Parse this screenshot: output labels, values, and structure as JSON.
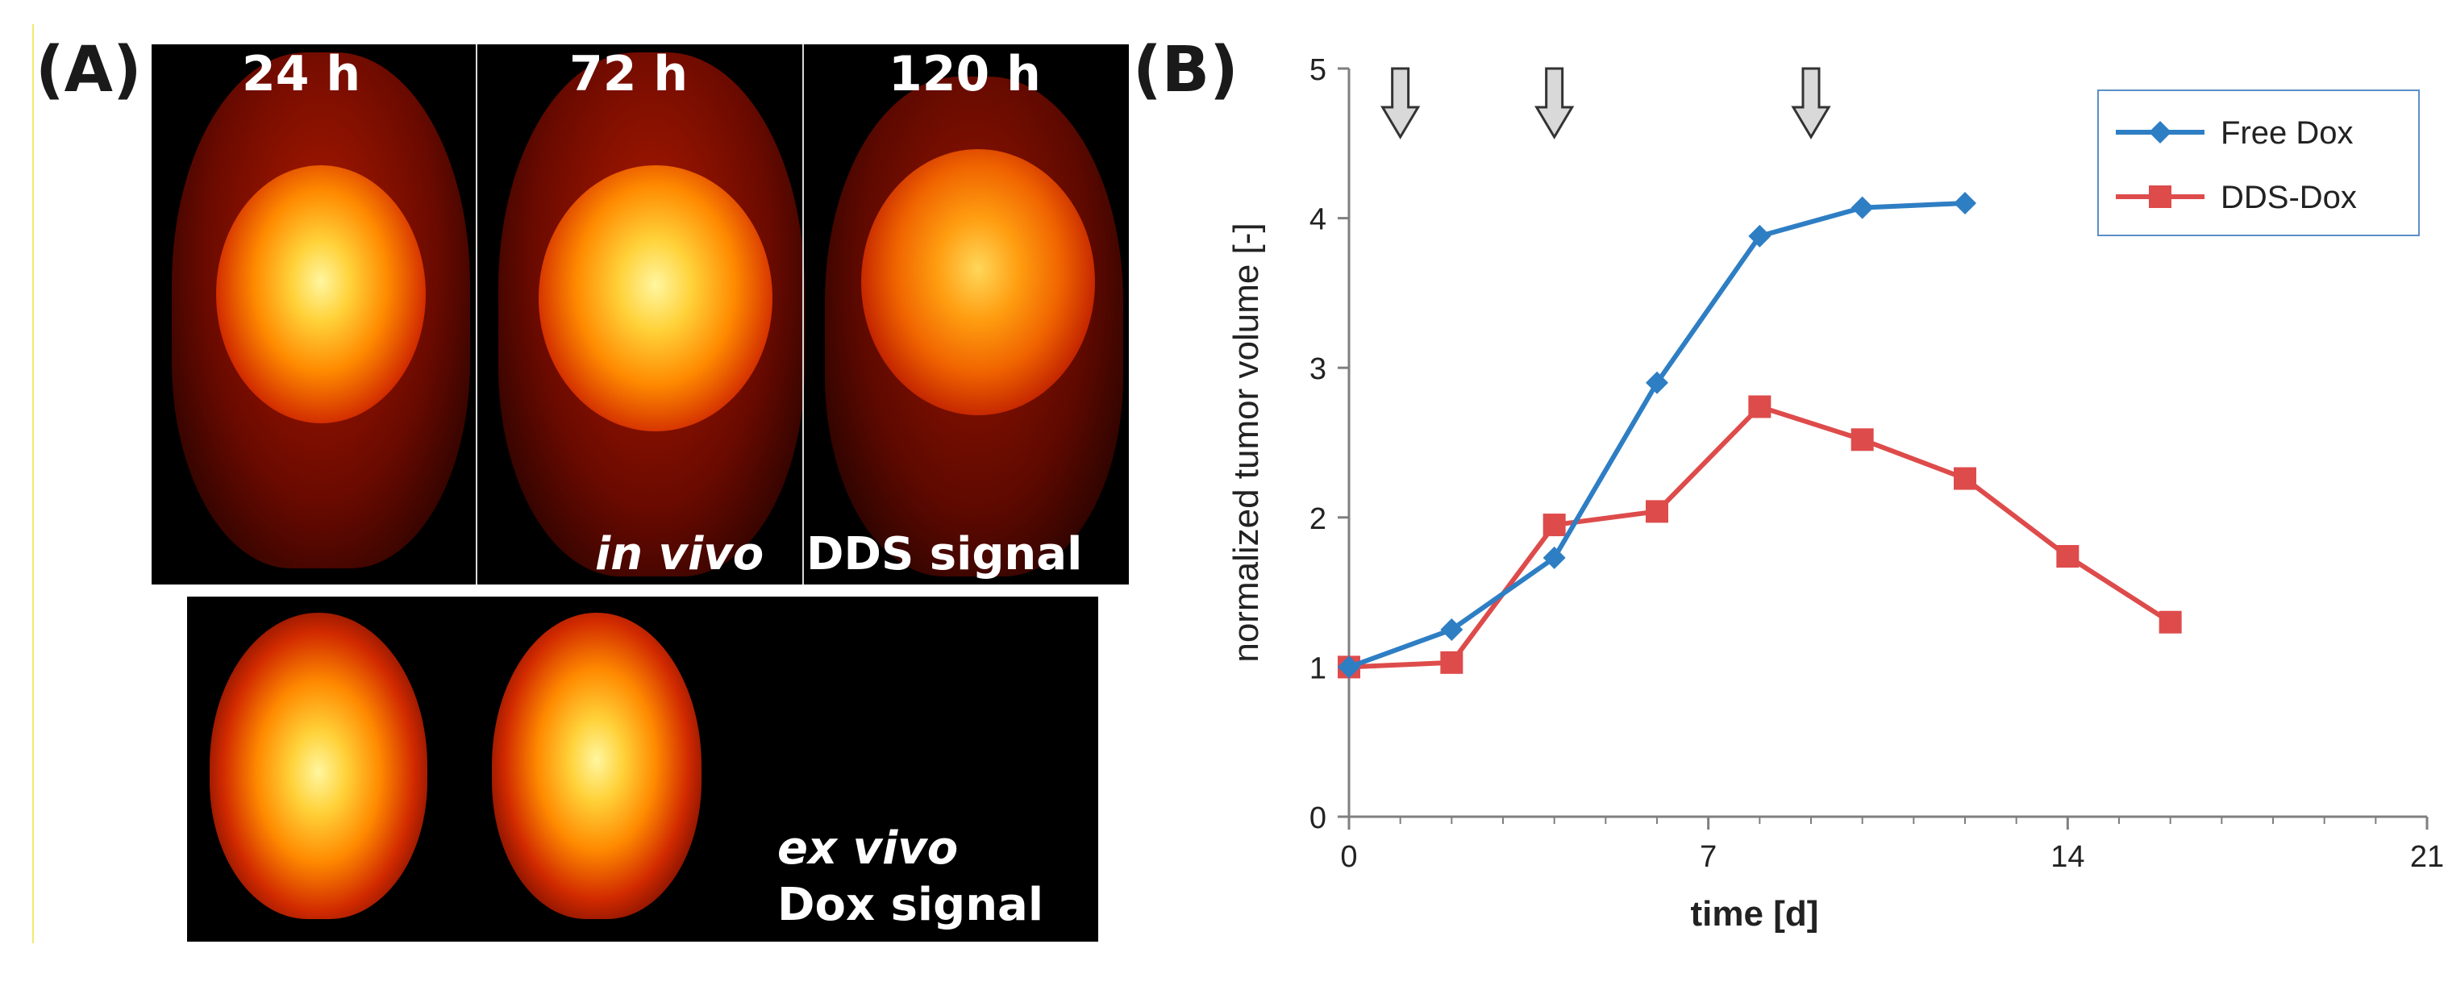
{
  "panel_a": {
    "label": "(A)",
    "time_labels": [
      "24 h",
      "72 h",
      "120 h"
    ],
    "in_vivo_text": "in vivo",
    "dds_signal_text": "DDS signal",
    "ex_vivo_text": "ex vivo",
    "dox_signal_text": "Dox signal"
  },
  "panel_b": {
    "label": "(B)"
  },
  "colors": {
    "free_dox": "#2e7ec4",
    "dds_dox": "#de4b4b",
    "arrow_fill": "#d9d9d9",
    "heat_core": "#fff6a0",
    "heat_mid": "#ff8a00",
    "heat_edge": "#c41200"
  },
  "chart_data": {
    "type": "line",
    "title": "",
    "xlabel": "time [d]",
    "ylabel": "normalized tumor volume [-]",
    "xlim": [
      0,
      21
    ],
    "ylim": [
      0,
      5
    ],
    "xticks": [
      0,
      7,
      14,
      21
    ],
    "yticks": [
      0,
      1,
      2,
      3,
      4,
      5
    ],
    "grid": false,
    "legend_position": "top-right",
    "dosing_arrows_days": [
      1,
      4,
      9
    ],
    "series": [
      {
        "name": "Free Dox",
        "marker": "diamond",
        "x": [
          0,
          2,
          4,
          6,
          8,
          10,
          12
        ],
        "y": [
          1.0,
          1.25,
          1.73,
          2.9,
          3.88,
          4.07,
          4.1
        ]
      },
      {
        "name": "DDS-Dox",
        "marker": "square",
        "x": [
          0,
          2,
          4,
          6,
          8,
          10,
          12,
          14,
          16
        ],
        "y": [
          1.0,
          1.03,
          1.95,
          2.04,
          2.74,
          2.52,
          2.26,
          1.74,
          1.3
        ]
      }
    ]
  }
}
